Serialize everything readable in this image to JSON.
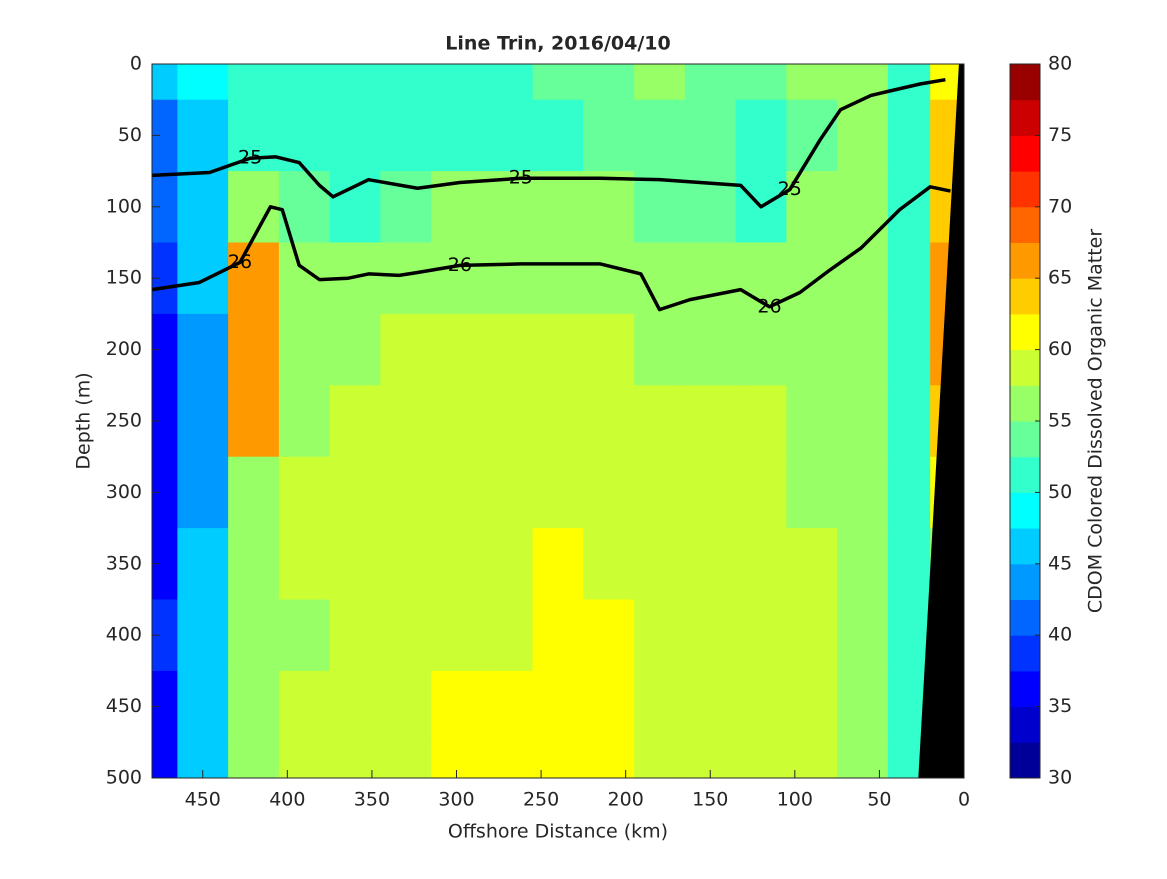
{
  "chart_data": {
    "type": "contour",
    "title": "Line Trin, 2016/04/10",
    "xlabel": "Offshore Distance (km)",
    "ylabel": "Depth (m)",
    "colorbar_label": "CDOM Colored Dissolved Organic Matter",
    "colormap": "jet",
    "clim": [
      30,
      80
    ],
    "level_step": 2.5,
    "colorbar_ticks": [
      30,
      35,
      40,
      45,
      50,
      55,
      60,
      65,
      70,
      75,
      80
    ],
    "xlim": [
      480,
      0
    ],
    "xticks": [
      450,
      400,
      350,
      300,
      250,
      200,
      150,
      100,
      50,
      0
    ],
    "ylim": [
      0,
      500
    ],
    "yticks": [
      0,
      50,
      100,
      150,
      200,
      250,
      300,
      350,
      400,
      450,
      500
    ],
    "x": [
      480,
      450,
      420,
      390,
      360,
      330,
      300,
      270,
      240,
      210,
      180,
      150,
      120,
      90,
      60,
      30,
      10
    ],
    "depth": [
      0,
      50,
      100,
      150,
      200,
      250,
      300,
      350,
      400,
      450,
      500
    ],
    "z": [
      [
        45,
        48,
        50,
        51,
        52,
        52,
        52,
        52,
        53,
        54,
        55,
        54,
        53,
        55,
        57,
        52,
        62
      ],
      [
        42,
        46,
        50,
        50,
        51,
        51,
        51,
        51,
        52,
        53,
        53,
        53,
        52,
        54,
        56,
        52,
        63
      ],
      [
        40,
        45,
        55,
        53,
        52,
        54,
        55,
        55,
        55,
        55,
        54,
        53,
        52,
        55,
        57,
        52,
        64
      ],
      [
        38,
        45,
        65,
        55,
        56,
        57,
        57,
        57,
        57,
        57,
        56,
        55,
        55,
        56,
        57,
        51,
        65
      ],
      [
        37,
        44,
        65,
        57,
        57,
        58,
        58,
        58,
        58,
        58,
        57,
        57,
        57,
        57,
        57,
        50,
        65
      ],
      [
        36,
        44,
        66,
        57,
        58,
        58,
        59,
        59,
        59,
        59,
        59,
        58,
        58,
        57,
        56,
        50,
        63
      ],
      [
        35,
        44,
        57,
        58,
        59,
        59,
        59,
        59,
        59,
        59,
        59,
        58,
        58,
        57,
        56,
        51,
        62
      ],
      [
        36,
        45,
        56,
        58,
        59,
        59,
        59,
        59,
        60,
        59,
        59,
        59,
        58,
        58,
        57,
        51,
        57
      ],
      [
        38,
        46,
        55,
        57,
        58,
        59,
        59,
        59,
        60,
        60,
        59,
        59,
        58,
        58,
        57,
        52,
        null
      ],
      [
        36,
        46,
        55,
        58,
        58,
        59,
        60,
        60,
        60,
        60,
        59,
        59,
        58,
        58,
        56,
        52,
        null
      ],
      [
        35,
        46,
        55,
        58,
        59,
        59,
        60,
        60,
        61,
        60,
        59,
        59,
        58,
        58,
        57,
        52,
        null
      ]
    ],
    "bottom": {
      "x": [
        3,
        27
      ],
      "depth": [
        0,
        500
      ]
    },
    "series": [
      {
        "name": "25",
        "color": "#000000",
        "x": [
          480,
          446,
          422,
          407,
          393,
          381,
          373,
          352,
          323,
          298,
          262,
          215,
          180,
          156,
          132,
          120,
          103,
          85,
          73,
          55,
          26,
          11
        ],
        "values": [
          78,
          76,
          66,
          65,
          69,
          85,
          93,
          81,
          87,
          83,
          80,
          80,
          81,
          83,
          85,
          100,
          88,
          53,
          32,
          22,
          14,
          11
        ]
      },
      {
        "name": "26",
        "color": "#000000",
        "x": [
          480,
          452,
          428,
          410,
          403,
          393,
          381,
          364,
          352,
          334,
          323,
          298,
          262,
          215,
          191,
          180,
          162,
          132,
          115,
          97,
          79,
          61,
          38,
          20,
          8
        ],
        "values": [
          158,
          153,
          139,
          100,
          102,
          141,
          151,
          150,
          147,
          148,
          146,
          141,
          140,
          140,
          147,
          172,
          165,
          158,
          170,
          160,
          144,
          129,
          102,
          86,
          89
        ]
      }
    ]
  }
}
